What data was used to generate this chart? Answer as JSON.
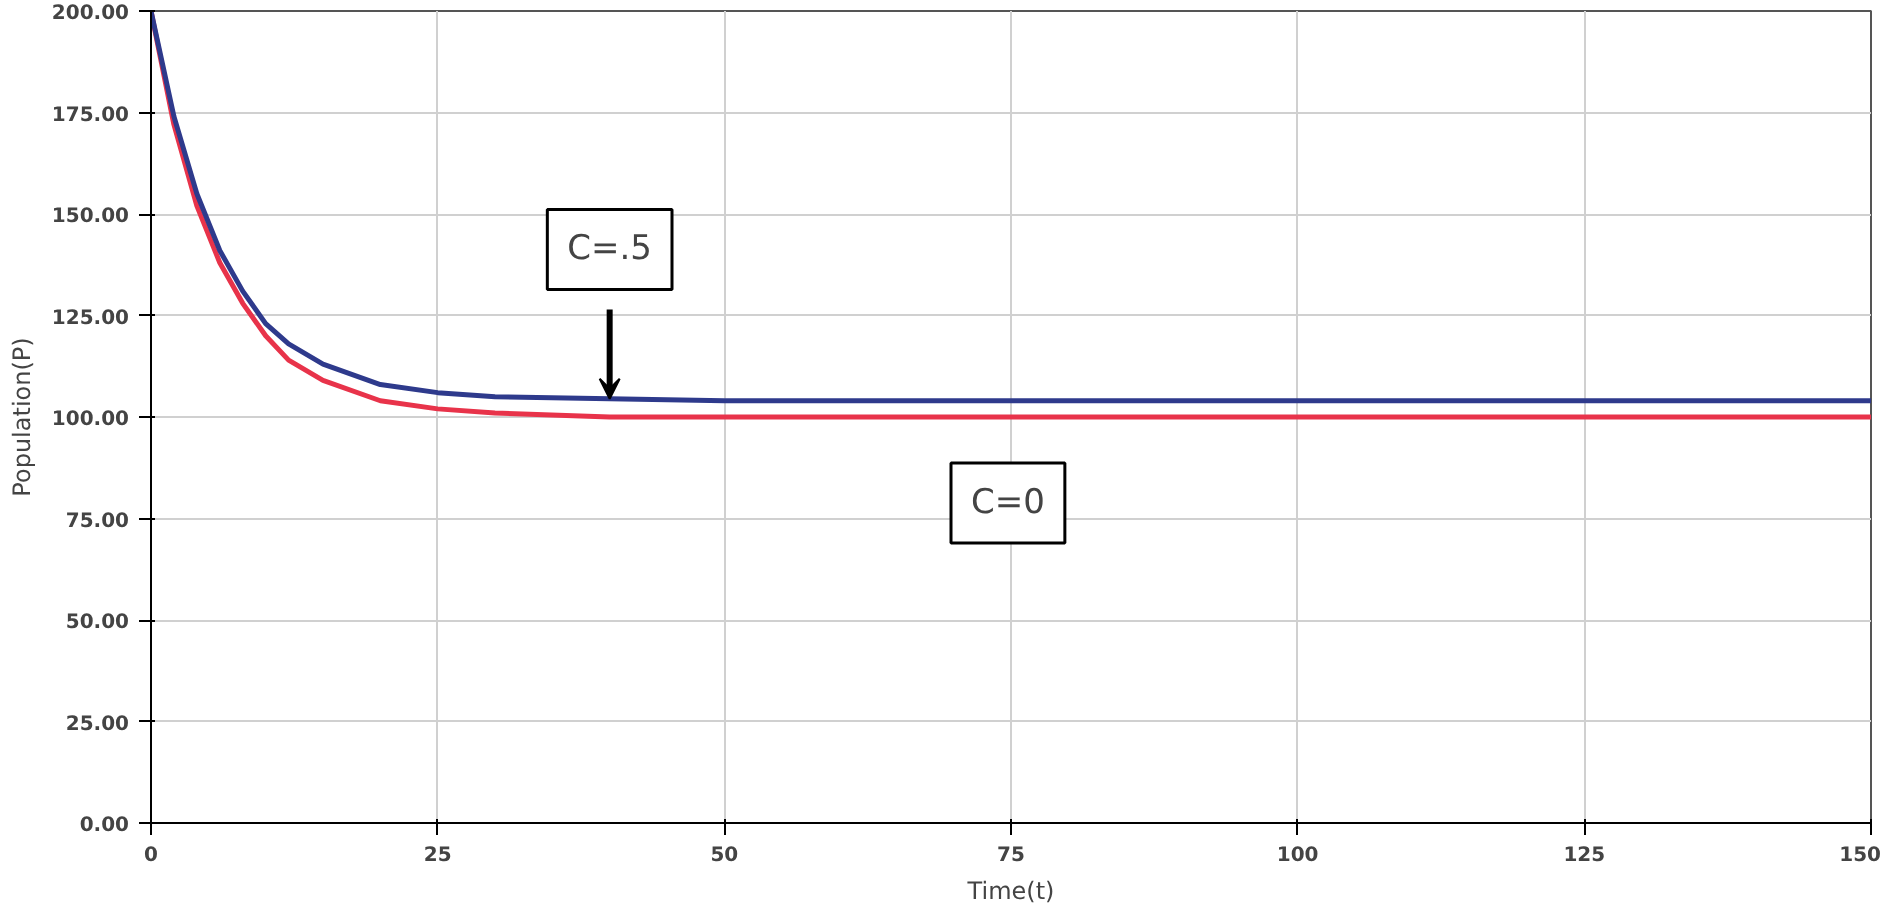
{
  "chart_data": {
    "type": "line",
    "xlabel": "Time(t)",
    "ylabel": "Population(P)",
    "x": [
      0,
      2,
      4,
      6,
      8,
      10,
      12,
      15,
      20,
      25,
      30,
      40,
      50,
      75,
      100,
      125,
      150
    ],
    "series": [
      {
        "color": "#e8334a",
        "values": [
          200,
          172,
          152,
          138,
          128,
          120,
          114,
          109,
          104,
          102,
          101,
          100,
          100,
          100,
          100,
          100,
          100
        ]
      },
      {
        "color": "#2e3a8c",
        "values": [
          200,
          174,
          155,
          141,
          131,
          123,
          118,
          113,
          108,
          106,
          105,
          104.5,
          104,
          104,
          104,
          104,
          104
        ]
      }
    ],
    "xlim": [
      0,
      150
    ],
    "xticks": [
      0,
      25,
      50,
      75,
      100,
      125,
      150
    ],
    "ylim": [
      0,
      200
    ],
    "yticks": [
      {
        "value": 0,
        "label": "0.00"
      },
      {
        "value": 25,
        "label": "25.00"
      },
      {
        "value": 50,
        "label": "50.00"
      },
      {
        "value": 75,
        "label": "75.00"
      },
      {
        "value": 100,
        "label": "100.00"
      },
      {
        "value": 125,
        "label": "125.00"
      },
      {
        "value": 150,
        "label": "150.00"
      },
      {
        "value": 175,
        "label": "175.00"
      },
      {
        "value": 200,
        "label": "200.00"
      }
    ],
    "grid": true,
    "marker": "none",
    "line_style": "solid",
    "annotations": [
      {
        "text": "C=.5",
        "x": 40,
        "y": 104.5
      },
      "C=0"
    ]
  }
}
